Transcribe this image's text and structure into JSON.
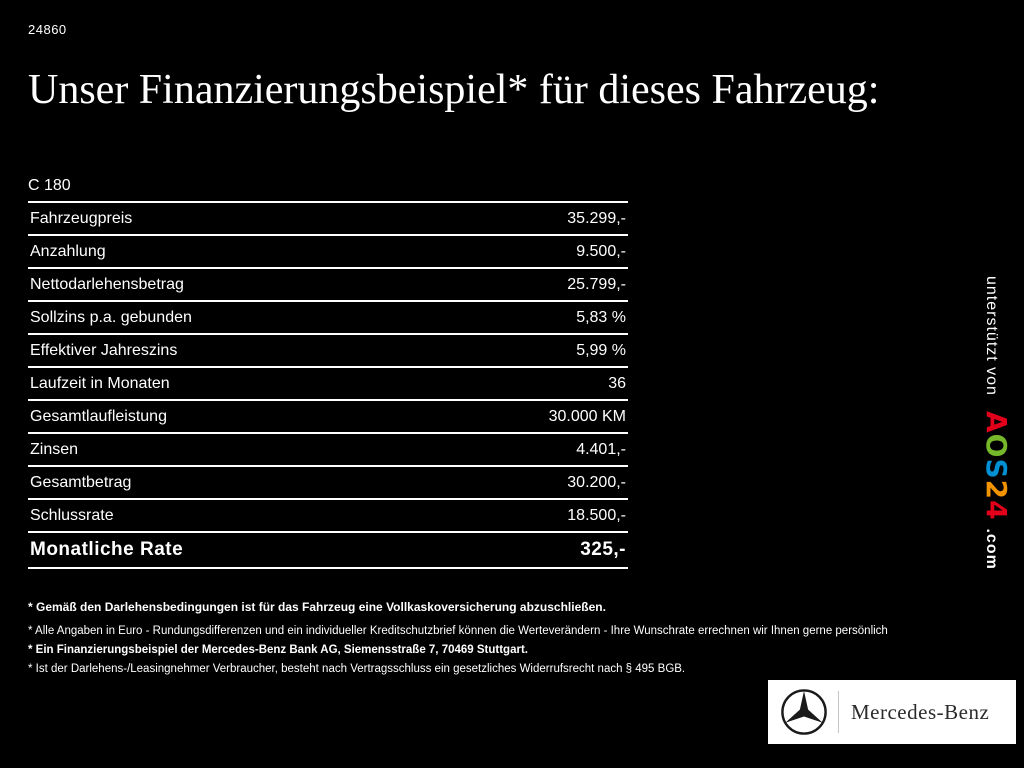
{
  "page": {
    "ref_number": "24860",
    "title": "Unser Finanzierungsbeispiel* für dieses Fahrzeug:"
  },
  "finance": {
    "model": "C 180",
    "rows": [
      {
        "label": "Fahrzeugpreis",
        "value": "35.299,-"
      },
      {
        "label": "Anzahlung",
        "value": "9.500,-"
      },
      {
        "label": "Nettodarlehensbetrag",
        "value": "25.799,-"
      },
      {
        "label": "Sollzins p.a. gebunden",
        "value": "5,83 %"
      },
      {
        "label": "Effektiver Jahreszins",
        "value": "5,99 %"
      },
      {
        "label": "Laufzeit in Monaten",
        "value": "36"
      },
      {
        "label": "Gesamtlaufleistung",
        "value": "30.000 KM"
      },
      {
        "label": "Zinsen",
        "value": "4.401,-"
      },
      {
        "label": "Gesamtbetrag",
        "value": "30.200,-"
      },
      {
        "label": "Schlussrate",
        "value": "18.500,-"
      }
    ],
    "total_row": {
      "label": "Monatliche Rate",
      "value": "325,-"
    }
  },
  "side_credit": {
    "prefix": "unterstützt von",
    "logo_letters": [
      {
        "char": "A",
        "color": "#e2001a"
      },
      {
        "char": "O",
        "color": "#76b82a"
      },
      {
        "char": "S",
        "color": "#0090d4"
      },
      {
        "char": "2",
        "color": "#f29400"
      },
      {
        "char": "4",
        "color": "#e2001a"
      }
    ],
    "suffix": ".com"
  },
  "footnotes": [
    "* Gemäß den Darlehensbedingungen ist für das Fahrzeug eine Vollkaskoversicherung abzuschließen.",
    "* Alle Angaben in Euro - Rundungsdifferenzen und ein individueller Kreditschutzbrief können die Werteverändern - Ihre Wunschrate errechnen wir Ihnen gerne persönlich",
    "* Ein Finanzierungsbeispiel der Mercedes-Benz Bank AG, Siemensstraße 7, 70469 Stuttgart.",
    "* Ist der Darlehens-/Leasingnehmer Verbraucher, besteht nach Vertragsschluss ein gesetzliches Widerrufsrecht nach § 495 BGB."
  ],
  "brand": {
    "name": "Mercedes-Benz",
    "accent_white": "#ffffff",
    "background": "#000000"
  }
}
